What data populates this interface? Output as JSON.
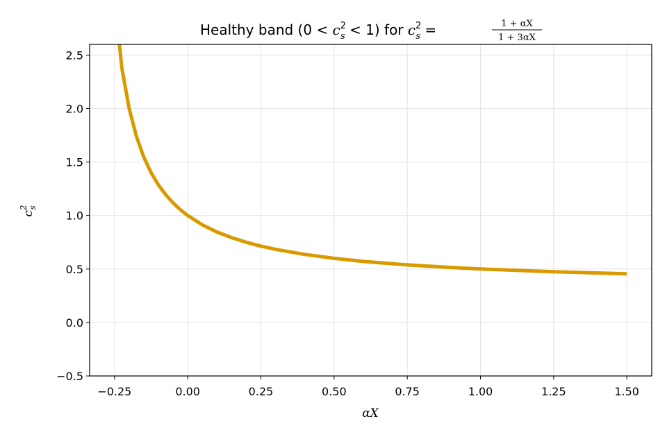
{
  "chart_data": {
    "type": "line",
    "title": {
      "prefix": "Healthy band (0 < ",
      "var": "c",
      "sup": "2",
      "sub": "s",
      "mid": " < 1) for ",
      "eq": " = ",
      "numerator": "1 + αX",
      "denominator": "1 + 3αX"
    },
    "xlabel": "αX",
    "ylabel": {
      "var": "c",
      "sup": "2",
      "sub": "s"
    },
    "xlim": [
      -0.335,
      1.585
    ],
    "ylim": [
      -0.5,
      2.6
    ],
    "x_ticks": [
      -0.25,
      0.0,
      0.25,
      0.5,
      0.75,
      1.0,
      1.25,
      1.5
    ],
    "x_tick_labels": [
      "−0.25",
      "0.00",
      "0.25",
      "0.50",
      "0.75",
      "1.00",
      "1.25",
      "1.50"
    ],
    "y_ticks": [
      -0.5,
      0.0,
      0.5,
      1.0,
      1.5,
      2.0,
      2.5
    ],
    "y_tick_labels": [
      "−0.5",
      "0.0",
      "0.5",
      "1.0",
      "1.5",
      "2.0",
      "2.5"
    ],
    "grid": true,
    "series": [
      {
        "color": "#d99a00",
        "x": [
          -0.2333,
          -0.225,
          -0.2,
          -0.175,
          -0.15,
          -0.125,
          -0.1,
          -0.075,
          -0.05,
          -0.025,
          0.0,
          0.05,
          0.1,
          0.15,
          0.2,
          0.25,
          0.3,
          0.4,
          0.5,
          0.6,
          0.75,
          0.9,
          1.0,
          1.25,
          1.5
        ],
        "y": [
          2.6,
          2.383,
          2.0,
          1.739,
          1.545,
          1.4,
          1.286,
          1.194,
          1.118,
          1.054,
          1.0,
          0.913,
          0.846,
          0.793,
          0.75,
          0.714,
          0.684,
          0.636,
          0.6,
          0.571,
          0.538,
          0.514,
          0.5,
          0.474,
          0.455
        ]
      }
    ]
  }
}
